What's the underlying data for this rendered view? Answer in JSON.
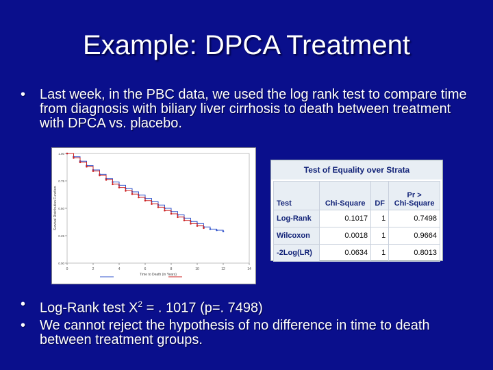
{
  "title": "Example: DPCA Treatment",
  "bullets_top": [
    "Last week, in the PBC data, we used the log rank test to compare time from diagnosis with biliary liver cirrhosis to death between treatment with DPCA vs. placebo."
  ],
  "bullet_logrank_prefix": "Log-Rank test X",
  "bullet_logrank_sup": "2",
  "bullet_logrank_suffix": " = . 1017 (p=. 7498)",
  "bullet_conclusion": "We cannot reject the hypothesis of no difference in time to death between treatment groups.",
  "stats_table": {
    "caption": "Test of Equality over Strata",
    "headers": {
      "test": "Test",
      "chisq": "Chi-Square",
      "df": "DF",
      "p_top": "Pr >",
      "p_bottom": "Chi-Square"
    },
    "rows": [
      {
        "test": "Log-Rank",
        "chisq": "0.1017",
        "df": "1",
        "p": "0.7498"
      },
      {
        "test": "Wilcoxon",
        "chisq": "0.0018",
        "df": "1",
        "p": "0.9664"
      },
      {
        "test": "-2Log(LR)",
        "chisq": "0.0634",
        "df": "1",
        "p": "0.8013"
      }
    ]
  },
  "chart_data": {
    "type": "line",
    "title": "",
    "xlabel": "Time to Death (in Years)",
    "ylabel": "Survival Distribution Function",
    "xlim": [
      0,
      14
    ],
    "ylim": [
      0,
      1
    ],
    "x_ticks": [
      0,
      2,
      4,
      6,
      8,
      10,
      12,
      14
    ],
    "y_ticks": [
      0,
      0.25,
      0.5,
      0.75,
      1.0
    ],
    "series": [
      {
        "name": "",
        "x": [
          0,
          0.5,
          1,
          1.5,
          2,
          2.5,
          3,
          3.5,
          4,
          4.5,
          5,
          5.5,
          6,
          6.5,
          7,
          7.5,
          8,
          8.5,
          9,
          9.5,
          10,
          10.5,
          11,
          11.5,
          12
        ],
        "y": [
          1.0,
          0.97,
          0.93,
          0.89,
          0.85,
          0.81,
          0.77,
          0.74,
          0.71,
          0.68,
          0.65,
          0.62,
          0.59,
          0.56,
          0.53,
          0.5,
          0.47,
          0.44,
          0.41,
          0.38,
          0.36,
          0.33,
          0.31,
          0.3,
          0.29
        ],
        "color": "#3355cc"
      },
      {
        "name": "",
        "x": [
          0,
          0.5,
          1,
          1.5,
          2,
          2.5,
          3,
          3.5,
          4,
          4.5,
          5,
          5.5,
          6,
          6.5,
          7,
          7.5,
          8,
          8.5,
          9,
          9.5,
          10,
          10.5
        ],
        "y": [
          1.0,
          0.96,
          0.92,
          0.88,
          0.84,
          0.8,
          0.76,
          0.72,
          0.69,
          0.66,
          0.63,
          0.6,
          0.57,
          0.54,
          0.51,
          0.48,
          0.45,
          0.42,
          0.39,
          0.36,
          0.34,
          0.32
        ],
        "color": "#cc2222"
      }
    ]
  }
}
